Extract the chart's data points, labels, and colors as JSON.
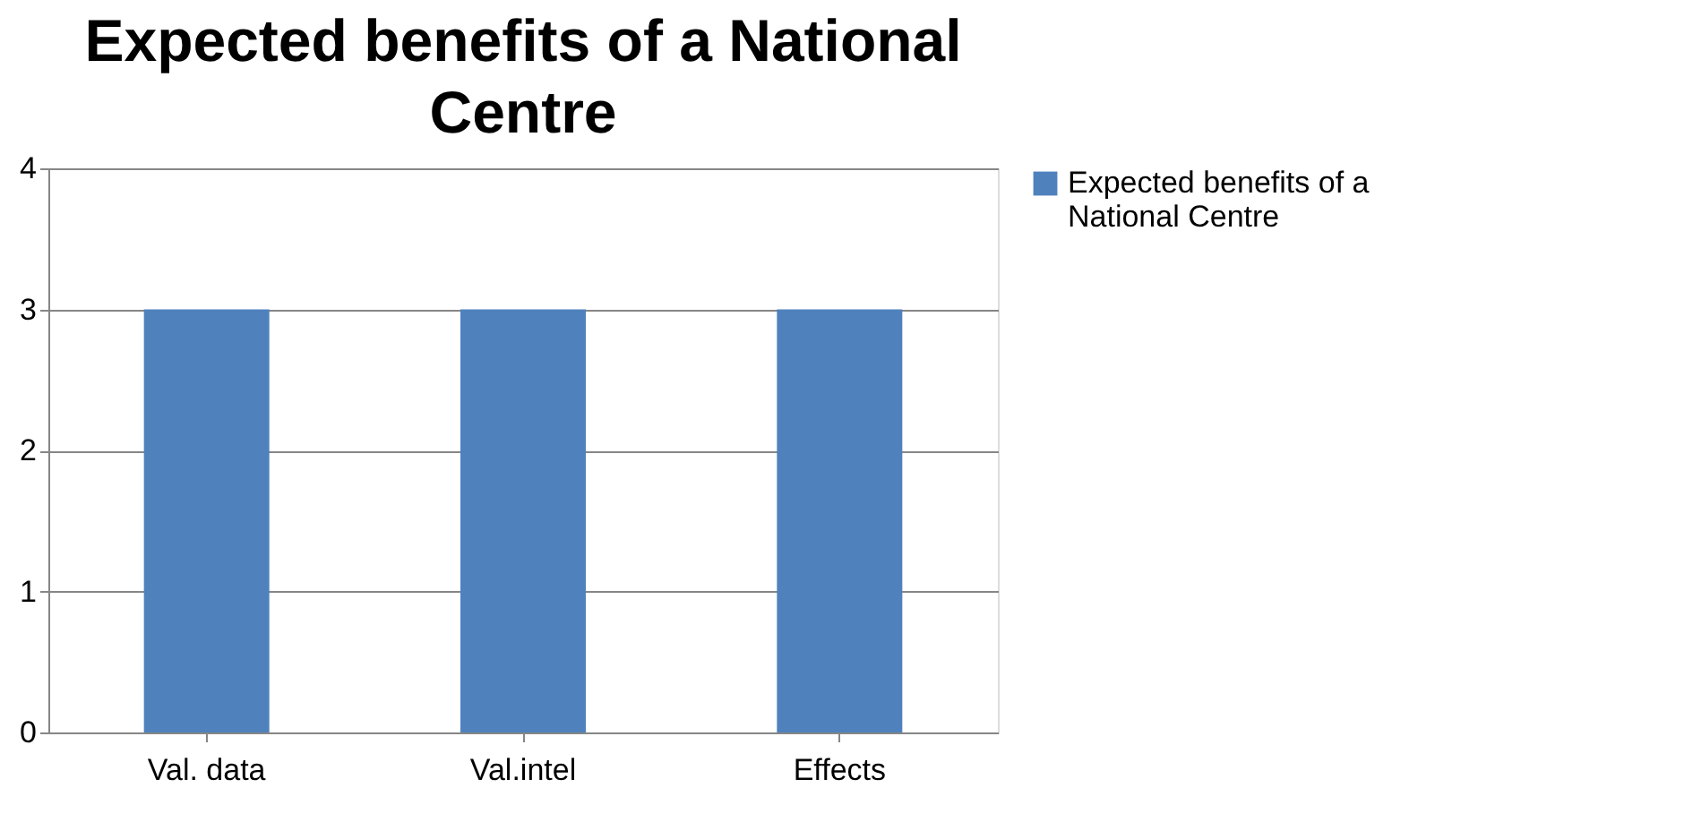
{
  "chart_data": {
    "type": "bar",
    "title": "Expected benefits of a National Centre",
    "categories": [
      "Val. data",
      "Val.intel",
      "Effects"
    ],
    "series": [
      {
        "name": "Expected benefits of a National Centre",
        "color": "#4f81bd",
        "values": [
          3,
          3,
          3
        ]
      }
    ],
    "ylim": [
      0,
      4
    ],
    "yticks": [
      0,
      1,
      2,
      3,
      4
    ],
    "grid": "y",
    "legend": "right"
  }
}
